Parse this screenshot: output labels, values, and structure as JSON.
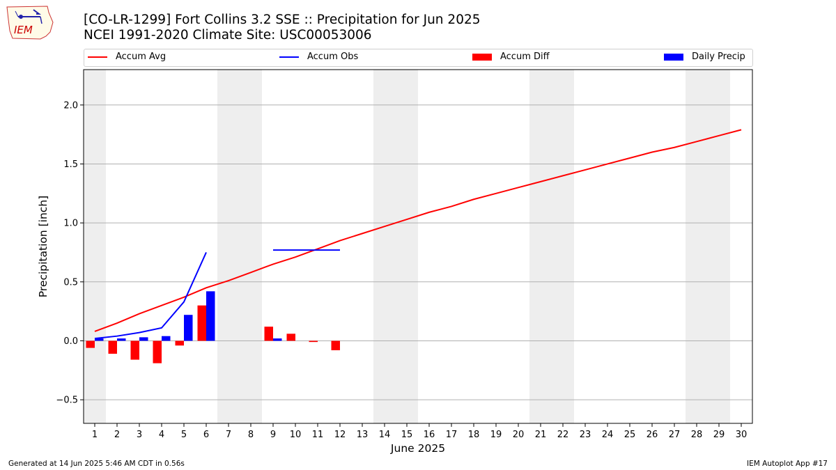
{
  "header": {
    "title_line1": "[CO-LR-1299] Fort Collins 3.2 SSE :: Precipitation for Jun 2025",
    "title_line2": "NCEI 1991-2020 Climate Site: USC00053006"
  },
  "logo": {
    "text": "IEM",
    "color": "#cc0000"
  },
  "legend": {
    "items": [
      {
        "label": "Accum Avg",
        "color": "#ff0000",
        "kind": "line"
      },
      {
        "label": "Accum Obs",
        "color": "#0000ff",
        "kind": "line"
      },
      {
        "label": "Accum Diff",
        "color": "#ff0000",
        "kind": "bar"
      },
      {
        "label": "Daily Precip",
        "color": "#0000ff",
        "kind": "bar"
      }
    ]
  },
  "footer": {
    "left": "Generated at 14 Jun 2025 5:46 AM CDT in 0.56s",
    "right": "IEM Autoplot App #17"
  },
  "chart_data": {
    "type": "line",
    "title": "[CO-LR-1299] Fort Collins 3.2 SSE :: Precipitation for Jun 2025",
    "xlabel": "June 2025",
    "ylabel": "Precipitation [inch]",
    "xlim": [
      0.5,
      30.5
    ],
    "ylim": [
      -0.7,
      2.3
    ],
    "yticks": [
      -0.5,
      0.0,
      0.5,
      1.0,
      1.5,
      2.0
    ],
    "ytick_labels": [
      "−0.5",
      "0.0",
      "0.5",
      "1.0",
      "1.5",
      "2.0"
    ],
    "x": [
      1,
      2,
      3,
      4,
      5,
      6,
      7,
      8,
      9,
      10,
      11,
      12,
      13,
      14,
      15,
      16,
      17,
      18,
      19,
      20,
      21,
      22,
      23,
      24,
      25,
      26,
      27,
      28,
      29,
      30
    ],
    "grid": "horizontal",
    "weekend_shading": [
      [
        0.5,
        1.5
      ],
      [
        6.5,
        8.5
      ],
      [
        13.5,
        15.5
      ],
      [
        20.5,
        22.5
      ],
      [
        27.5,
        29.5
      ]
    ],
    "series": [
      {
        "name": "Accum Avg",
        "type": "line",
        "color": "#ff0000",
        "values": [
          0.08,
          0.15,
          0.23,
          0.3,
          0.37,
          0.45,
          0.51,
          0.58,
          0.65,
          0.71,
          0.78,
          0.85,
          0.91,
          0.97,
          1.03,
          1.09,
          1.14,
          1.2,
          1.25,
          1.3,
          1.35,
          1.4,
          1.45,
          1.5,
          1.55,
          1.6,
          1.64,
          1.69,
          1.74,
          1.79
        ]
      },
      {
        "name": "Accum Obs",
        "type": "line",
        "color": "#0000ff",
        "values": [
          0.02,
          0.04,
          0.07,
          0.11,
          0.33,
          0.75,
          null,
          null,
          0.77,
          0.77,
          0.77,
          0.77,
          null,
          null,
          null,
          null,
          null,
          null,
          null,
          null,
          null,
          null,
          null,
          null,
          null,
          null,
          null,
          null,
          null,
          null
        ]
      },
      {
        "name": "Accum Diff",
        "type": "bar",
        "color": "#ff0000",
        "values": [
          -0.06,
          -0.11,
          -0.16,
          -0.19,
          -0.04,
          0.3,
          null,
          null,
          0.12,
          0.06,
          -0.01,
          -0.08,
          null,
          null,
          null,
          null,
          null,
          null,
          null,
          null,
          null,
          null,
          null,
          null,
          null,
          null,
          null,
          null,
          null,
          null
        ]
      },
      {
        "name": "Daily Precip",
        "type": "bar",
        "color": "#0000ff",
        "values": [
          0.02,
          0.02,
          0.03,
          0.04,
          0.22,
          0.42,
          null,
          null,
          0.02,
          0.0,
          0.0,
          0.0,
          null,
          null,
          null,
          null,
          null,
          null,
          null,
          null,
          null,
          null,
          null,
          null,
          null,
          null,
          null,
          null,
          null,
          null
        ]
      }
    ]
  }
}
